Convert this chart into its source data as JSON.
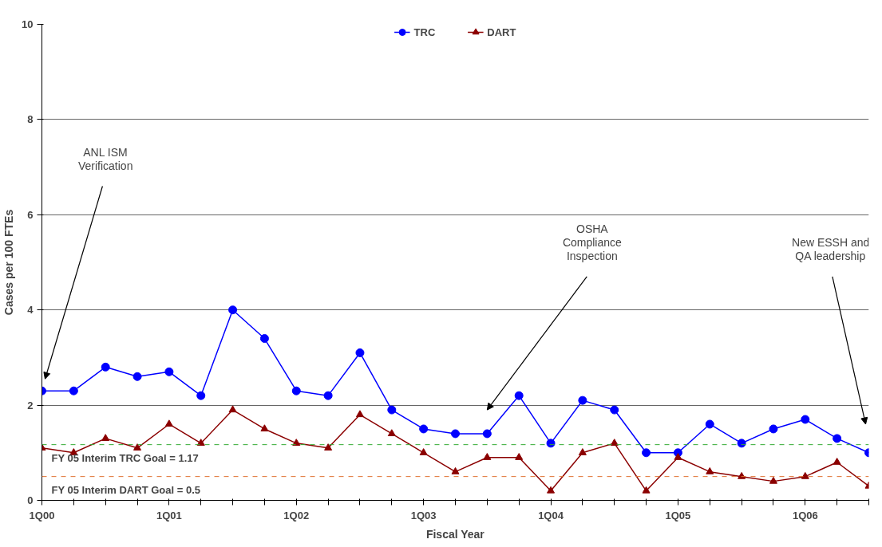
{
  "chart_data": {
    "type": "line",
    "xlabel": "Fiscal Year",
    "ylabel": "Cases per 100 FTEs",
    "categories": [
      "1Q00",
      null,
      null,
      null,
      "1Q01",
      null,
      null,
      null,
      "1Q02",
      null,
      null,
      null,
      "1Q03",
      null,
      null,
      null,
      "1Q04",
      null,
      null,
      null,
      "1Q05",
      null,
      null,
      null,
      "1Q06",
      null,
      null
    ],
    "series": [
      {
        "name": "TRC",
        "color": "#0000ff",
        "marker": "circle",
        "values": [
          2.3,
          2.3,
          2.8,
          2.6,
          2.7,
          2.2,
          4.0,
          3.4,
          2.3,
          2.2,
          3.1,
          1.9,
          1.5,
          1.4,
          1.4,
          2.2,
          1.2,
          2.1,
          1.9,
          1.0,
          1.0,
          1.6,
          1.2,
          1.5,
          1.7,
          1.3,
          1.0
        ]
      },
      {
        "name": "DART",
        "color": "#8b0000",
        "marker": "triangle",
        "values": [
          1.1,
          1.0,
          1.3,
          1.1,
          1.6,
          1.2,
          1.9,
          1.5,
          1.2,
          1.1,
          1.8,
          1.4,
          1.0,
          0.6,
          0.9,
          0.9,
          0.2,
          1.0,
          1.2,
          0.2,
          0.9,
          0.6,
          0.5,
          0.4,
          0.5,
          0.8,
          0.3
        ]
      }
    ],
    "ylim": [
      0,
      10
    ],
    "yticks": [
      0,
      2,
      4,
      6,
      8,
      10
    ],
    "grid": "y",
    "legend": "top",
    "ref_lines": [
      {
        "axis": "y",
        "value": 1.17,
        "label": "FY 05 Interim TRC Goal = 1.17",
        "color": "#33aa33",
        "line_style": "dashed"
      },
      {
        "axis": "y",
        "value": 0.5,
        "label": "FY 05 Interim DART Goal = 0.5",
        "color": "#e07030",
        "line_style": "dashed"
      }
    ],
    "annotations": [
      "ANL ISM Verification",
      "OSHA Compliance Inspection",
      "New ESSH and QA leadership"
    ]
  }
}
